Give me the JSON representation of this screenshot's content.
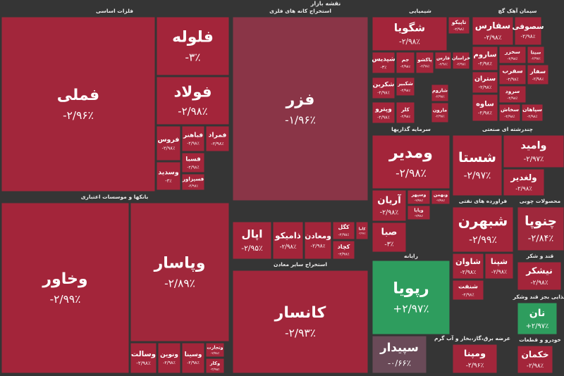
{
  "chart_data": {
    "type": "treemap",
    "title": "نقشه بازار",
    "groups": [
      {
        "name": "فلزات اساسی",
        "categories": [
          "فملی",
          "فلوله",
          "فولاد",
          "فروس",
          "فباهنر",
          "فمراد",
          "فسبا",
          "وسدید",
          "فسپزاور"
        ],
        "values": [
          -2.96,
          -3,
          -2.98,
          -2.98,
          -2.98,
          -2.98,
          -2.98,
          -3,
          -2.98
        ],
        "value_labels": [
          "-۲/۹۶٪",
          "-۳٪",
          "-۲/۹۸٪",
          "-۲/۹۸٪",
          "-۲/۹۸٪",
          "-۲/۹۸٪",
          "-۲/۹۸٪",
          "-۳٪",
          "-۲/۹۸٪"
        ]
      },
      {
        "name": "استخراج کانه های فلزی",
        "categories": [
          "فزر",
          "اپال",
          "ذامیکو",
          "ومعادن",
          "کگل",
          "کچاد",
          "کاما"
        ],
        "values": [
          -1.96,
          -2.95,
          -2.98,
          -2.98,
          -2.98,
          -2.98,
          -2.98
        ],
        "value_labels": [
          "-۱/۹۶٪",
          "-۲/۹۵٪",
          "-۲/۹۸٪",
          "-۲/۹۸٪",
          "-۲/۹۸٪",
          "-۲/۹۸٪",
          "-۲/۹۸٪"
        ]
      },
      {
        "name": "بانکها و موسسات اعتباری",
        "categories": [
          "وخاور",
          "وپاسار",
          "وسالت",
          "ونوین",
          "وسینا",
          "وتجارت",
          "وکار"
        ],
        "values": [
          -2.99,
          -2.89,
          -2.98,
          -2.98,
          -2.98,
          -2.98,
          -2.98
        ],
        "value_labels": [
          "-۲/۹۹٪",
          "-۲/۸۹٪",
          "-۲/۹۸٪",
          "-۲/۹۸٪",
          "-۲/۹۸٪",
          "-۲/۹۸٪",
          "-۲/۹۸٪"
        ]
      },
      {
        "name": "استخراج سایر معادن",
        "categories": [
          "کانسار"
        ],
        "values": [
          -2.93
        ],
        "value_labels": [
          "-۲/۹۳٪"
        ]
      },
      {
        "name": "شیمیایی",
        "categories": [
          "شگویا",
          "تاپیکو",
          "شپدیس",
          "جم",
          "پاکشو",
          "فارس",
          "خراسان",
          "شکربن",
          "شکبیر",
          "وپترو",
          "کلر",
          "شاروم",
          "مارون"
        ],
        "values": [
          -2.98,
          -2.98,
          -3,
          -2.98,
          -2.98,
          -2.98,
          -2.98,
          -2.98,
          -2.98,
          -2.98,
          -2.98,
          -2.98,
          -2.98
        ],
        "value_labels": [
          "-۲/۹۸٪",
          "-۲/۹۸٪",
          "-۳٪",
          "-۲/۹۸٪",
          "-۲/۹۸٪",
          "-۲/۹۸٪",
          "-۲/۹۸٪",
          "-۲/۹۸٪",
          "-۲/۹۸٪",
          "-۲/۹۸٪",
          "-۲/۹۸٪",
          "-۲/۹۸٪",
          "-۲/۹۸٪"
        ]
      },
      {
        "name": "سیمان آهک گچ",
        "categories": [
          "سفارس",
          "سصوفی",
          "ساروم",
          "سخزر",
          "سیتا",
          "ستران",
          "سفرب",
          "سفار",
          "سرود",
          "ساوه",
          "سخاش",
          "سپاهان"
        ],
        "values": [
          -2.98,
          -2.98,
          -2.98,
          -2.98,
          -2.98,
          -2.98,
          -2.98,
          -2.98,
          -2.98,
          -2.98,
          -2.98,
          -2.98
        ],
        "value_labels": [
          "-۲/۹۸٪",
          "-۲/۹۸٪",
          "-۲/۹۸٪",
          "-۲/۹۸٪",
          "-۲/۹۸٪",
          "-۲/۹۸٪",
          "-۲/۹۸٪",
          "-۲/۹۸٪",
          "-۲/۹۸٪",
          "-۲/۹۸٪",
          "-۲/۹۸٪",
          "-۲/۹۸٪"
        ]
      },
      {
        "name": "سرمایه گذاریها",
        "categories": [
          "ومدیر",
          "آریان",
          "وسپهر",
          "وبهمن",
          "وپایا",
          "صبا"
        ],
        "values": [
          -2.98,
          -2.98,
          -2.98,
          -2.98,
          -2.98,
          -3
        ],
        "value_labels": [
          "-۲/۹۸٪",
          "-۲/۹۸٪",
          "-۲/۹۸٪",
          "-۲/۹۸٪",
          "-۲/۹۸٪",
          "-۳٪"
        ]
      },
      {
        "name": "چندرشته ای صنعتی",
        "categories": [
          "شستا",
          "وامید",
          "ولغدیر"
        ],
        "values": [
          -2.97,
          -2.97,
          -2.98
        ],
        "value_labels": [
          "-۲/۹۷٪",
          "-۲/۹۷٪",
          "-۲/۹۸٪"
        ]
      },
      {
        "name": "فراورده های نفتی",
        "categories": [
          "شبهرن",
          "شاوان",
          "شپنا",
          "شنفت"
        ],
        "values": [
          -2.99,
          -2.98,
          -2.98,
          -2.98
        ],
        "value_labels": [
          "-۲/۹۹٪",
          "-۲/۹۸٪",
          "-۲/۹۸٪",
          "-۲/۹۸٪"
        ]
      },
      {
        "name": "محصولات چوبی",
        "categories": [
          "چنوپا"
        ],
        "values": [
          -2.84
        ],
        "value_labels": [
          "-۲/۸۴٪"
        ]
      },
      {
        "name": "رایانه",
        "categories": [
          "رپویا",
          "سپیدار"
        ],
        "values": [
          2.97,
          -0.66
        ],
        "value_labels": [
          "+۲/۹۷٪",
          "-۰/۶۶٪"
        ]
      },
      {
        "name": "قند و شکر",
        "categories": [
          "نیشکر"
        ],
        "values": [
          -2.98
        ],
        "value_labels": [
          "-۲/۹۸٪"
        ]
      },
      {
        "name": "غذایی بجز قند وشکر",
        "categories": [
          "نان"
        ],
        "values": [
          2.97
        ],
        "value_labels": [
          "+۲/۹۷٪"
        ]
      },
      {
        "name": "عرضه برق،گاز،بخار و آب گرم",
        "categories": [
          "ومپنا"
        ],
        "values": [
          -2.96
        ],
        "value_labels": [
          "-۲/۹۶٪"
        ]
      },
      {
        "name": "خودرو و قطعات",
        "categories": [
          "خکمان"
        ],
        "values": [
          -2.98
        ],
        "value_labels": [
          "-۲/۹۸٪"
        ]
      }
    ]
  }
}
